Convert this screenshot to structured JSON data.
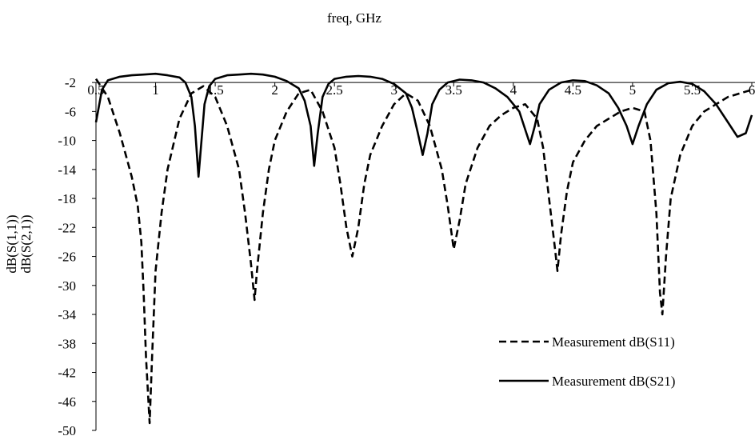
{
  "chart_data": {
    "type": "line",
    "title": "freq, GHz",
    "xlabel": "freq, GHz",
    "ylabel_lines": [
      "dB(S(1,1))",
      "dB(S(2,1))"
    ],
    "xlim": [
      0.5,
      6
    ],
    "ylim": [
      -50,
      0
    ],
    "x_ticks": [
      0.5,
      1,
      1.5,
      2,
      2.5,
      3,
      3.5,
      4,
      4.5,
      5,
      5.5,
      6
    ],
    "x_tick_labels": [
      "0.5",
      "1",
      "1.5",
      "2",
      "2.5",
      "3",
      "3.5",
      "4",
      "4.5",
      "5",
      "5.5",
      "6"
    ],
    "y_ticks": [
      -2,
      -6,
      -10,
      -14,
      -18,
      -22,
      -26,
      -30,
      -34,
      -38,
      -42,
      -46,
      -50
    ],
    "y_tick_labels": [
      "-2",
      "-6",
      "-10",
      "-14",
      "-18",
      "-22",
      "-26",
      "-30",
      "-34",
      "-38",
      "-42",
      "-46",
      "-50"
    ],
    "x_axis_position": "top",
    "grid": false,
    "legend_position": "bottom-right",
    "series": [
      {
        "name": "Measurement dB(S11)",
        "style": "dashed",
        "color": "#000000",
        "points": [
          [
            0.5,
            -1.5
          ],
          [
            0.6,
            -4
          ],
          [
            0.7,
            -9
          ],
          [
            0.75,
            -12
          ],
          [
            0.8,
            -15
          ],
          [
            0.85,
            -19
          ],
          [
            0.88,
            -24
          ],
          [
            0.9,
            -31
          ],
          [
            0.92,
            -40
          ],
          [
            0.95,
            -49
          ],
          [
            0.97,
            -40
          ],
          [
            1.0,
            -28
          ],
          [
            1.05,
            -20
          ],
          [
            1.1,
            -14
          ],
          [
            1.2,
            -7
          ],
          [
            1.3,
            -3.5
          ],
          [
            1.4,
            -2.5
          ],
          [
            1.5,
            -4
          ],
          [
            1.6,
            -8
          ],
          [
            1.7,
            -14
          ],
          [
            1.75,
            -20
          ],
          [
            1.8,
            -27
          ],
          [
            1.83,
            -32
          ],
          [
            1.85,
            -28
          ],
          [
            1.9,
            -20
          ],
          [
            1.95,
            -14
          ],
          [
            2.0,
            -10
          ],
          [
            2.1,
            -6
          ],
          [
            2.2,
            -3.5
          ],
          [
            2.3,
            -3
          ],
          [
            2.4,
            -6
          ],
          [
            2.5,
            -11
          ],
          [
            2.55,
            -16
          ],
          [
            2.6,
            -22
          ],
          [
            2.65,
            -26
          ],
          [
            2.7,
            -22
          ],
          [
            2.75,
            -16
          ],
          [
            2.8,
            -12
          ],
          [
            2.9,
            -8
          ],
          [
            3.0,
            -5
          ],
          [
            3.1,
            -3.5
          ],
          [
            3.2,
            -4.5
          ],
          [
            3.3,
            -8
          ],
          [
            3.4,
            -14
          ],
          [
            3.45,
            -19
          ],
          [
            3.5,
            -25
          ],
          [
            3.55,
            -21
          ],
          [
            3.6,
            -16
          ],
          [
            3.7,
            -11
          ],
          [
            3.8,
            -8
          ],
          [
            3.9,
            -6.5
          ],
          [
            4.0,
            -5.5
          ],
          [
            4.1,
            -5
          ],
          [
            4.2,
            -7
          ],
          [
            4.25,
            -11
          ],
          [
            4.3,
            -18
          ],
          [
            4.35,
            -25
          ],
          [
            4.37,
            -28
          ],
          [
            4.4,
            -23
          ],
          [
            4.45,
            -17
          ],
          [
            4.5,
            -13
          ],
          [
            4.6,
            -10
          ],
          [
            4.7,
            -8
          ],
          [
            4.8,
            -7
          ],
          [
            4.9,
            -6
          ],
          [
            5.0,
            -5.5
          ],
          [
            5.1,
            -6
          ],
          [
            5.15,
            -10
          ],
          [
            5.2,
            -20
          ],
          [
            5.23,
            -31
          ],
          [
            5.25,
            -34
          ],
          [
            5.28,
            -26
          ],
          [
            5.32,
            -18
          ],
          [
            5.4,
            -12
          ],
          [
            5.5,
            -8
          ],
          [
            5.6,
            -6
          ],
          [
            5.7,
            -5
          ],
          [
            5.8,
            -4
          ],
          [
            5.9,
            -3.5
          ],
          [
            6.0,
            -3
          ]
        ]
      },
      {
        "name": "Measurement dB(S21)",
        "style": "solid",
        "color": "#000000",
        "points": [
          [
            0.5,
            -7.5
          ],
          [
            0.55,
            -3
          ],
          [
            0.6,
            -1.7
          ],
          [
            0.7,
            -1.2
          ],
          [
            0.8,
            -1
          ],
          [
            0.9,
            -0.9
          ],
          [
            1.0,
            -0.8
          ],
          [
            1.1,
            -1
          ],
          [
            1.2,
            -1.3
          ],
          [
            1.25,
            -2
          ],
          [
            1.3,
            -4
          ],
          [
            1.33,
            -8
          ],
          [
            1.36,
            -15
          ],
          [
            1.38,
            -11
          ],
          [
            1.41,
            -5
          ],
          [
            1.45,
            -2.5
          ],
          [
            1.5,
            -1.5
          ],
          [
            1.6,
            -1
          ],
          [
            1.7,
            -0.9
          ],
          [
            1.8,
            -0.8
          ],
          [
            1.9,
            -0.9
          ],
          [
            2.0,
            -1.2
          ],
          [
            2.1,
            -1.8
          ],
          [
            2.2,
            -2.8
          ],
          [
            2.25,
            -4.5
          ],
          [
            2.3,
            -8
          ],
          [
            2.33,
            -13.5
          ],
          [
            2.36,
            -9
          ],
          [
            2.4,
            -4
          ],
          [
            2.45,
            -2.2
          ],
          [
            2.5,
            -1.5
          ],
          [
            2.6,
            -1.2
          ],
          [
            2.7,
            -1.1
          ],
          [
            2.8,
            -1.2
          ],
          [
            2.9,
            -1.5
          ],
          [
            3.0,
            -2.2
          ],
          [
            3.1,
            -3.5
          ],
          [
            3.15,
            -5.5
          ],
          [
            3.2,
            -9
          ],
          [
            3.24,
            -12
          ],
          [
            3.28,
            -9
          ],
          [
            3.32,
            -5
          ],
          [
            3.38,
            -3
          ],
          [
            3.45,
            -2
          ],
          [
            3.55,
            -1.6
          ],
          [
            3.65,
            -1.7
          ],
          [
            3.75,
            -2
          ],
          [
            3.85,
            -2.8
          ],
          [
            3.95,
            -4
          ],
          [
            4.05,
            -6
          ],
          [
            4.1,
            -8.5
          ],
          [
            4.14,
            -10.5
          ],
          [
            4.18,
            -8
          ],
          [
            4.22,
            -5
          ],
          [
            4.3,
            -3
          ],
          [
            4.4,
            -2
          ],
          [
            4.5,
            -1.7
          ],
          [
            4.6,
            -1.8
          ],
          [
            4.7,
            -2.4
          ],
          [
            4.8,
            -3.5
          ],
          [
            4.88,
            -5.5
          ],
          [
            4.95,
            -8
          ],
          [
            5.0,
            -10.5
          ],
          [
            5.05,
            -8
          ],
          [
            5.12,
            -5
          ],
          [
            5.2,
            -3
          ],
          [
            5.3,
            -2.1
          ],
          [
            5.4,
            -1.9
          ],
          [
            5.5,
            -2.2
          ],
          [
            5.6,
            -3.2
          ],
          [
            5.7,
            -5
          ],
          [
            5.8,
            -7.5
          ],
          [
            5.88,
            -9.5
          ],
          [
            5.95,
            -9
          ],
          [
            6.0,
            -6.5
          ]
        ]
      }
    ]
  }
}
